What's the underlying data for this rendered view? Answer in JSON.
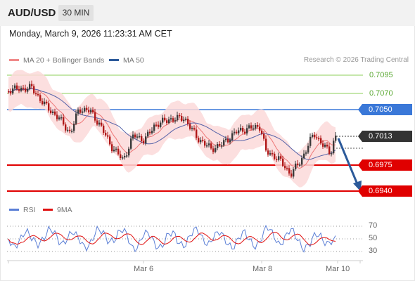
{
  "header": {
    "symbol": "AUD/USD",
    "timeframe": "30 MIN"
  },
  "datetime": "Monday, March 9, 2026 11:23:31 AM CET",
  "legend": [
    {
      "label": "MA 20 + Bollinger Bands",
      "color": "#f08a8a"
    },
    {
      "label": "MA 50",
      "color": "#2c5a9a"
    }
  ],
  "credit": "Research © 2026 Trading Central",
  "levels": {
    "green": [
      "0.7095",
      "0.7070"
    ],
    "pivot": "0.7050",
    "last": "0.7013",
    "supports": [
      "0.6975",
      "0.6940"
    ]
  },
  "rsi_legend": [
    {
      "label": "RSI",
      "color": "#5b7fd6"
    },
    {
      "label": "9MA",
      "color": "#e01010"
    }
  ],
  "rsi_ticks": [
    "70",
    "50",
    "30"
  ],
  "date_ticks": [
    "Mar 6",
    "Mar 8",
    "Mar 10"
  ],
  "colors": {
    "up": "#3a3a3a",
    "down": "#b01818",
    "band": "#fbd9d9",
    "ma20": "#ee7777",
    "ma50": "#5562a8",
    "resistance": "#8ccf5a",
    "pivot": "#3a78d8",
    "support": "#e00000",
    "last": "#333333",
    "arrow": "#2c5a9a"
  }
}
